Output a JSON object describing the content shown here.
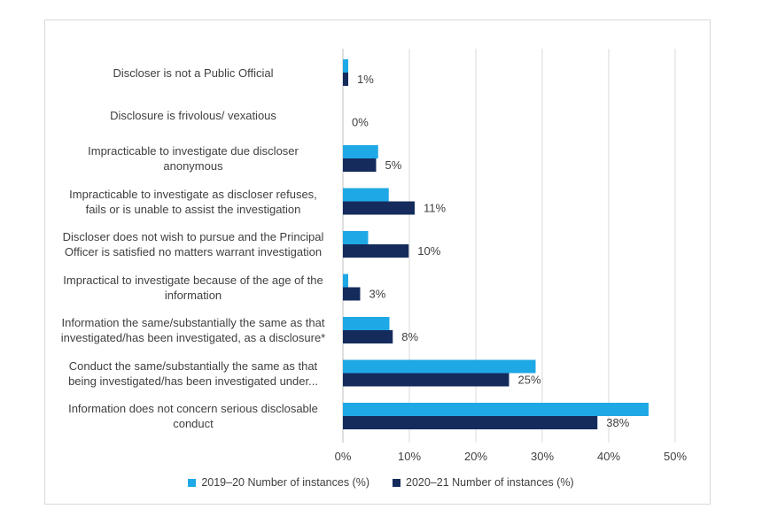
{
  "chart_data": {
    "type": "bar",
    "orientation": "horizontal",
    "categories": [
      [
        "Discloser is not a Public Official"
      ],
      [
        "Disclosure is frivolous/ vexatious"
      ],
      [
        "Impracticable to investigate due discloser",
        "anonymous"
      ],
      [
        "Impracticable to investigate as discloser refuses,",
        "fails or is unable to assist the investigation"
      ],
      [
        "Discloser does not wish to pursue and the Principal",
        "Officer is satisfied no matters warrant investigation"
      ],
      [
        "Impractical to investigate because of the age of the",
        "information"
      ],
      [
        "Information the same/substantially the same as that",
        "investigated/has been investigated, as a disclosure*"
      ],
      [
        "Conduct the same/substantially the same as that",
        "being investigated/has been investigated under..."
      ],
      [
        "Information does not concern serious disclosable",
        "conduct"
      ]
    ],
    "series": [
      {
        "name": "2019–20 Number of instances (%)",
        "color": "#1fa8e6",
        "values": [
          0.8,
          0,
          5.3,
          6.9,
          3.8,
          0.8,
          7.0,
          29.0,
          46.0
        ]
      },
      {
        "name": "2020–21 Number of instances (%)",
        "color": "#142b5c",
        "values": [
          0.8,
          0,
          5.0,
          10.8,
          9.9,
          2.6,
          7.5,
          25.0,
          38.3
        ]
      }
    ],
    "data_labels": [
      "1%",
      "0%",
      "5%",
      "11%",
      "10%",
      "3%",
      "8%",
      "25%",
      "38%"
    ],
    "xticks": [
      "0%",
      "10%",
      "20%",
      "30%",
      "40%",
      "50%"
    ],
    "xlim": [
      0,
      50
    ],
    "grid": true,
    "legend_position": "bottom"
  }
}
